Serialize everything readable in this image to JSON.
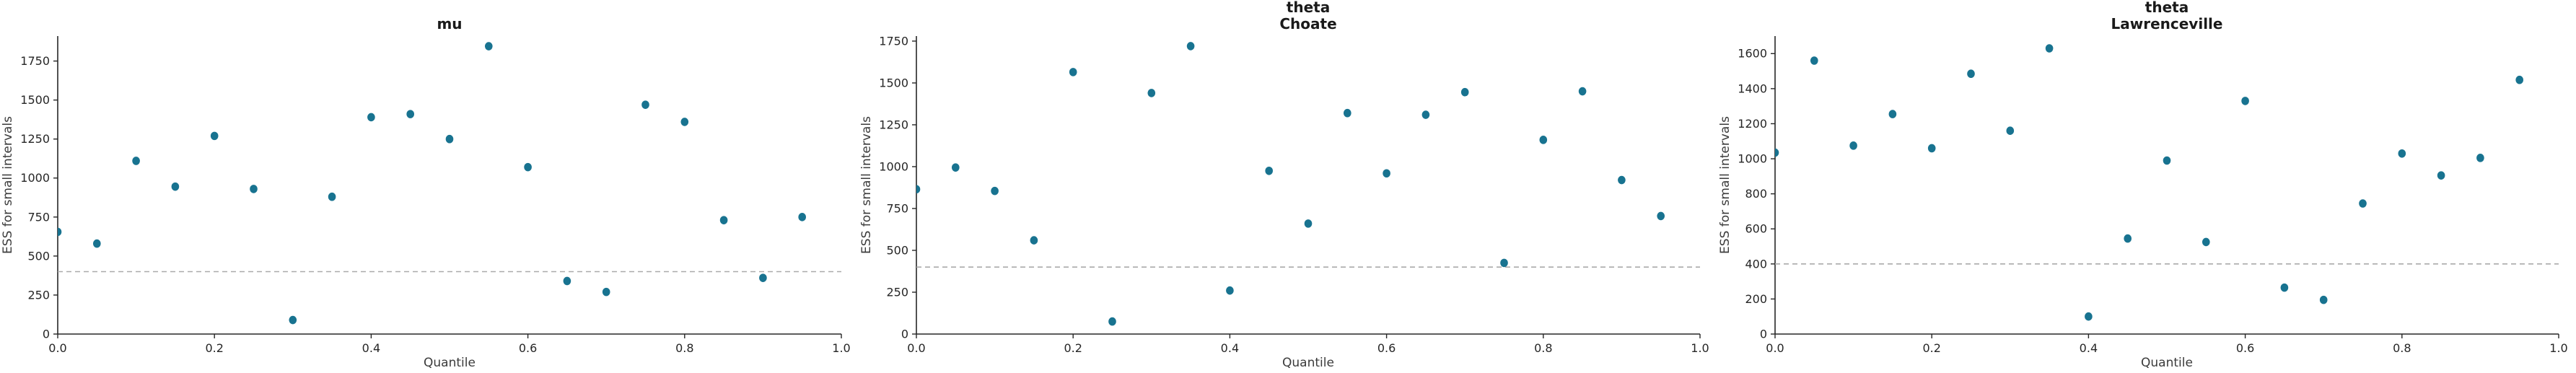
{
  "figure": {
    "background": "#ffffff"
  },
  "colors": {
    "point": "#187390",
    "ref_line": "#aaaaaa",
    "axis": "#262626",
    "tick_label": "#262626",
    "axis_label": "#3b3b3b",
    "title": "#1a1a1a"
  },
  "chart_data": [
    {
      "type": "scatter",
      "title": "mu",
      "title_lines": [
        "mu"
      ],
      "xlabel": "Quantile",
      "ylabel": "ESS for small intervals",
      "x": [
        0.0,
        0.05,
        0.1,
        0.15,
        0.2,
        0.25,
        0.3,
        0.35,
        0.4,
        0.45,
        0.5,
        0.55,
        0.6,
        0.65,
        0.7,
        0.75,
        0.8,
        0.85,
        0.9,
        0.95
      ],
      "y": [
        655,
        580,
        1110,
        945,
        1270,
        930,
        90,
        880,
        1390,
        1410,
        1250,
        1845,
        1070,
        340,
        270,
        1470,
        1360,
        730,
        360,
        750
      ],
      "xlim": [
        0.0,
        1.0
      ],
      "ylim": [
        0,
        1910
      ],
      "xticks": [
        0.0,
        0.2,
        0.4,
        0.6,
        0.8,
        1.0
      ],
      "yticks": [
        0,
        250,
        500,
        750,
        1000,
        1250,
        1500,
        1750
      ],
      "ref_line_y": 400,
      "grid": false,
      "legend": "none"
    },
    {
      "type": "scatter",
      "title": "theta Choate",
      "title_lines": [
        "theta",
        "Choate"
      ],
      "xlabel": "Quantile",
      "ylabel": "ESS for small intervals",
      "x": [
        0.0,
        0.05,
        0.1,
        0.15,
        0.2,
        0.25,
        0.3,
        0.35,
        0.4,
        0.45,
        0.5,
        0.55,
        0.6,
        0.65,
        0.7,
        0.75,
        0.8,
        0.85,
        0.9,
        0.95
      ],
      "y": [
        865,
        995,
        855,
        560,
        1565,
        75,
        1440,
        1720,
        260,
        975,
        660,
        1320,
        960,
        1310,
        1445,
        425,
        1160,
        1450,
        920,
        705
      ],
      "xlim": [
        0.0,
        1.0
      ],
      "ylim": [
        0,
        1780
      ],
      "xticks": [
        0.0,
        0.2,
        0.4,
        0.6,
        0.8,
        1.0
      ],
      "yticks": [
        0,
        250,
        500,
        750,
        1000,
        1250,
        1500,
        1750
      ],
      "ref_line_y": 400,
      "grid": false,
      "legend": "none"
    },
    {
      "type": "scatter",
      "title": "theta Lawrenceville",
      "title_lines": [
        "theta",
        "Lawrenceville"
      ],
      "xlabel": "Quantile",
      "ylabel": "ESS for small intervals",
      "x": [
        0.0,
        0.05,
        0.1,
        0.15,
        0.2,
        0.25,
        0.3,
        0.35,
        0.4,
        0.45,
        0.5,
        0.55,
        0.6,
        0.65,
        0.7,
        0.75,
        0.8,
        0.85,
        0.9,
        0.95
      ],
      "y": [
        1035,
        1560,
        1075,
        1255,
        1060,
        1485,
        1160,
        1630,
        100,
        545,
        990,
        525,
        1330,
        265,
        195,
        745,
        1030,
        905,
        1005,
        1450
      ],
      "xlim": [
        0.0,
        1.0
      ],
      "ylim": [
        0,
        1700
      ],
      "xticks": [
        0.0,
        0.2,
        0.4,
        0.6,
        0.8,
        1.0
      ],
      "yticks": [
        0,
        200,
        400,
        600,
        800,
        1000,
        1200,
        1400,
        1600
      ],
      "ref_line_y": 400,
      "grid": false,
      "legend": "none"
    }
  ]
}
